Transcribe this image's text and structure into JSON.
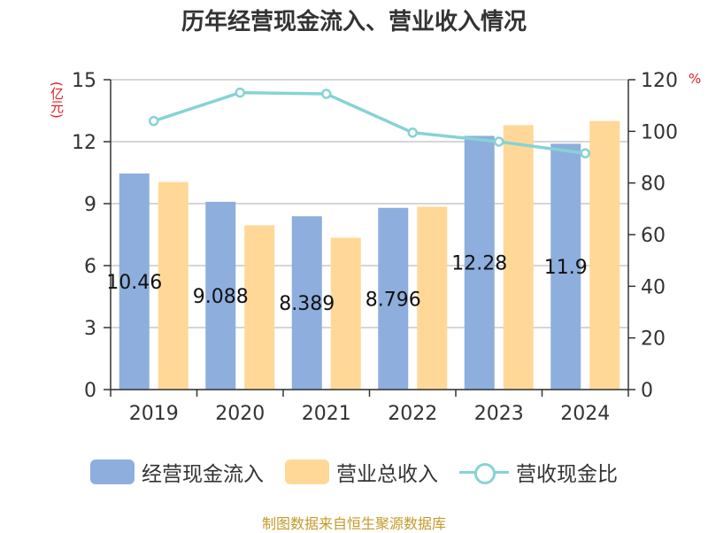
{
  "title": "历年经营现金流入、营业收入情况",
  "source": "制图数据来自恒生聚源数据库",
  "left_unit": "(亿元)",
  "right_unit": "%",
  "colors": {
    "cash_inflow": "#8eaedd",
    "revenue": "#ffd898",
    "ratio": "#86d3d6",
    "grid": "#c8c8c8",
    "axis": "#333333"
  },
  "chart_data": {
    "type": "bar",
    "categories": [
      "2019",
      "2020",
      "2021",
      "2022",
      "2023",
      "2024"
    ],
    "series": [
      {
        "name": "经营现金流入",
        "axis": "left",
        "values": [
          10.46,
          9.088,
          8.389,
          8.796,
          12.28,
          11.9
        ],
        "labels": [
          "10.46",
          "9.088",
          "8.389",
          "8.796",
          "12.28",
          "11.9"
        ]
      },
      {
        "name": "营业总收入",
        "axis": "left",
        "values": [
          10.05,
          7.95,
          7.35,
          8.85,
          12.8,
          13.0
        ]
      },
      {
        "name": "营收现金比",
        "axis": "right",
        "type": "line",
        "values": [
          104,
          115,
          114.5,
          99.5,
          96,
          91.5
        ]
      }
    ],
    "left_axis": {
      "min": 0,
      "max": 15,
      "ticks": [
        0,
        3,
        6,
        9,
        12,
        15
      ]
    },
    "right_axis": {
      "min": 0,
      "max": 120,
      "ticks": [
        0,
        20,
        40,
        60,
        80,
        100,
        120
      ]
    },
    "grid": true,
    "legend_position": "bottom"
  }
}
